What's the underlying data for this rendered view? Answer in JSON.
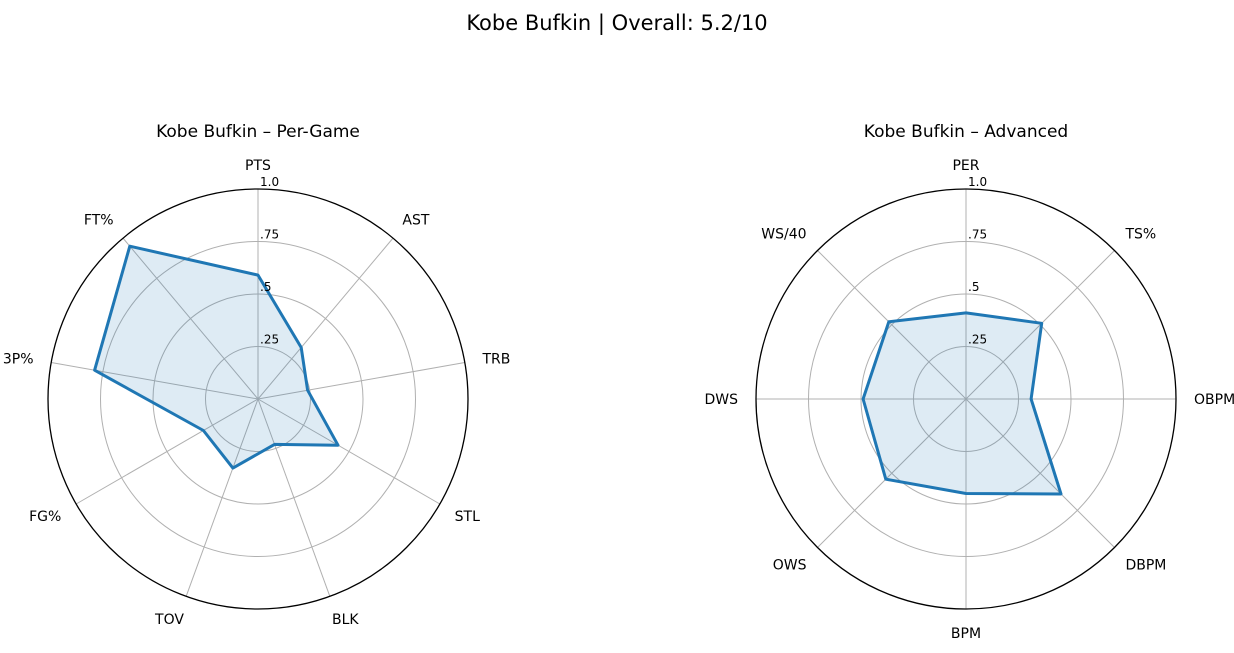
{
  "figure": {
    "title": "Kobe Bufkin | Overall: 5.2/10"
  },
  "chart_data": [
    {
      "type": "radar",
      "title": "Kobe Bufkin – Per-Game",
      "categories": [
        "PTS",
        "AST",
        "TRB",
        "STL",
        "BLK",
        "TOV",
        "FG%",
        "3P%",
        "FT%"
      ],
      "series": [
        {
          "values": [
            0.59,
            0.32,
            0.24,
            0.44,
            0.23,
            0.35,
            0.3,
            0.79,
            0.95
          ]
        }
      ],
      "rlim": [
        0,
        1
      ],
      "rticks": [
        0.25,
        0.5,
        0.75,
        1.0
      ],
      "rtick_labels": [
        ".25",
        ".5",
        ".75",
        "1.0"
      ],
      "grid": true,
      "color": "#1f77b4"
    },
    {
      "type": "radar",
      "title": "Kobe Bufkin – Advanced",
      "categories": [
        "PER",
        "TS%",
        "OBPM",
        "DBPM",
        "BPM",
        "OWS",
        "DWS",
        "WS/40"
      ],
      "series": [
        {
          "values": [
            0.41,
            0.51,
            0.31,
            0.64,
            0.45,
            0.54,
            0.49,
            0.52
          ]
        }
      ],
      "rlim": [
        0,
        1
      ],
      "rticks": [
        0.25,
        0.5,
        0.75,
        1.0
      ],
      "rtick_labels": [
        ".25",
        ".5",
        ".75",
        "1.0"
      ],
      "grid": true,
      "color": "#1f77b4"
    }
  ]
}
